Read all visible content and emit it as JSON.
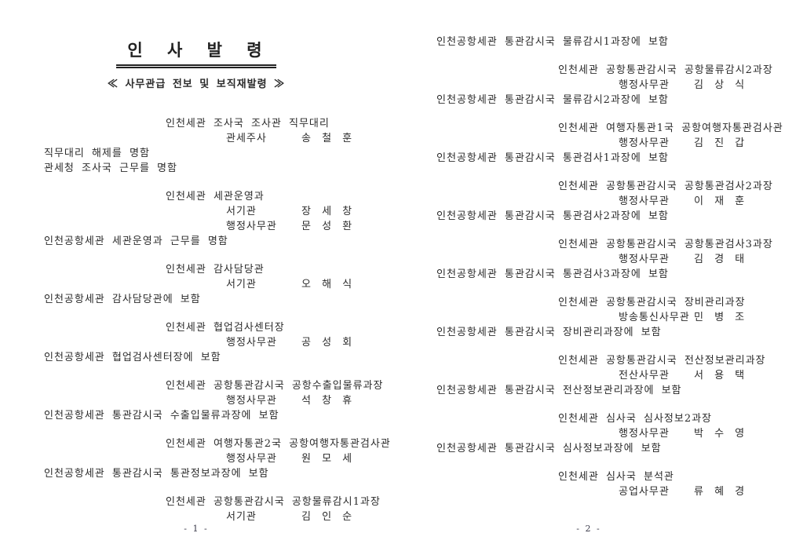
{
  "document": {
    "title": "인 사 발 령",
    "subtitle": "≪ 사무관급 전보 및 보직재발령 ≫",
    "pages": [
      {
        "number": "- 1 -",
        "entries": [
          {
            "position": "인천세관 조사국 조사관 직무대리",
            "appointments": [
              {
                "rank": "관세주사",
                "name": "송 철 훈"
              }
            ],
            "actions": [
              "직무대리 해제를 명함",
              "관세청 조사국 근무를 명함"
            ]
          },
          {
            "position": "인천세관 세관운영과",
            "appointments": [
              {
                "rank": "서기관",
                "name": "장 세 창"
              },
              {
                "rank": "행정사무관",
                "name": "문 성 환"
              }
            ],
            "actions": [
              "인천공항세관 세관운영과 근무를 명함"
            ]
          },
          {
            "position": "인천세관 감사담당관",
            "appointments": [
              {
                "rank": "서기관",
                "name": "오 해 식"
              }
            ],
            "actions": [
              "인천공항세관 감사담당관에 보함"
            ]
          },
          {
            "position": "인천세관 협업검사센터장",
            "appointments": [
              {
                "rank": "행정사무관",
                "name": "공 성 회"
              }
            ],
            "actions": [
              "인천공항세관 협업검사센터장에 보함"
            ]
          },
          {
            "position": "인천세관 공항통관감시국 공항수출입물류과장",
            "appointments": [
              {
                "rank": "행정사무관",
                "name": "석 창 휴"
              }
            ],
            "actions": [
              "인천공항세관 통관감시국 수출입물류과장에 보함"
            ]
          },
          {
            "position": "인천세관 여행자통관2국 공항여행자통관검사관",
            "appointments": [
              {
                "rank": "행정사무관",
                "name": "원 모 세"
              }
            ],
            "actions": [
              "인천공항세관 통관감시국 통관정보과장에 보함"
            ]
          },
          {
            "position": "인천세관 공항통관감시국 공항물류감시1과장",
            "appointments": [
              {
                "rank": "서기관",
                "name": "김 인 순"
              }
            ],
            "actions": []
          }
        ]
      },
      {
        "number": "- 2 -",
        "entries": [
          {
            "position": null,
            "appointments": [],
            "actions": [
              "인천공항세관 통관감시국 물류감시1과장에 보함"
            ]
          },
          {
            "position": "인천세관 공항통관감시국 공항물류감시2과장",
            "appointments": [
              {
                "rank": "행정사무관",
                "name": "김 상 식"
              }
            ],
            "actions": [
              "인천공항세관 통관감시국 물류감시2과장에 보함"
            ]
          },
          {
            "position": "인천세관 여행자통관1국 공항여행자통관검사관",
            "appointments": [
              {
                "rank": "행정사무관",
                "name": "김 진 갑"
              }
            ],
            "actions": [
              "인천공항세관 통관감시국 통관검사1과장에 보함"
            ]
          },
          {
            "position": "인천세관 공항통관감시국 공항통관검사2과장",
            "appointments": [
              {
                "rank": "행정사무관",
                "name": "이 재 훈"
              }
            ],
            "actions": [
              "인천공항세관 통관감시국 통관검사2과장에 보함"
            ]
          },
          {
            "position": "인천세관 공항통관감시국 공항통관검사3과장",
            "appointments": [
              {
                "rank": "행정사무관",
                "name": "김 경 태"
              }
            ],
            "actions": [
              "인천공항세관 통관감시국 통관검사3과장에 보함"
            ]
          },
          {
            "position": "인천세관 공항통관감시국 장비관리과장",
            "appointments": [
              {
                "rank": "방송통신사무관",
                "name": "민 병 조"
              }
            ],
            "actions": [
              "인천공항세관 통관감시국 장비관리과장에 보함"
            ]
          },
          {
            "position": "인천세관 공항통관감시국 전산정보관리과장",
            "appointments": [
              {
                "rank": "전산사무관",
                "name": "서 용 택"
              }
            ],
            "actions": [
              "인천공항세관 통관감시국 전산정보관리과장에 보함"
            ]
          },
          {
            "position": "인천세관 심사국 심사정보2과장",
            "appointments": [
              {
                "rank": "행정사무관",
                "name": "박 수 영"
              }
            ],
            "actions": [
              "인천공항세관 통관감시국 심사정보과장에 보함"
            ]
          },
          {
            "position": "인천세관 심사국 분석관",
            "appointments": [
              {
                "rank": "공업사무관",
                "name": "류 혜 경"
              }
            ],
            "actions": []
          }
        ]
      }
    ]
  }
}
